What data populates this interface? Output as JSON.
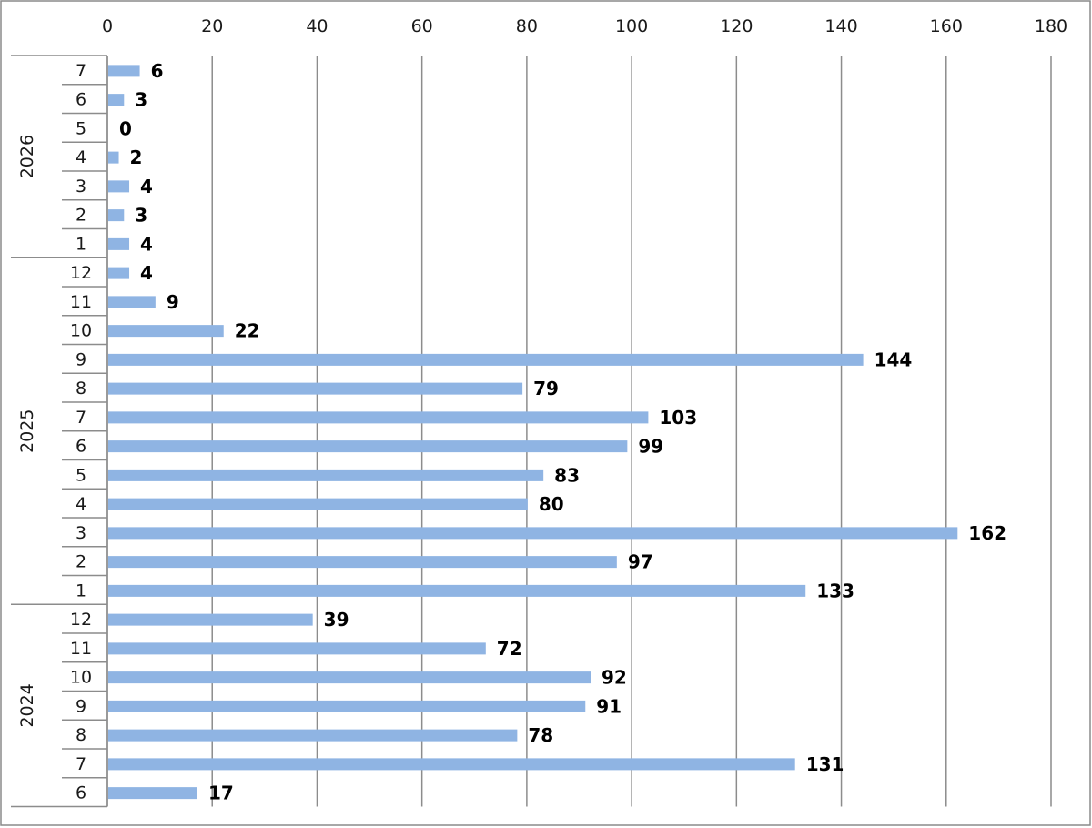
{
  "colors": {
    "bar": "#8fb4e3",
    "grid": "#8c8c8c",
    "frame": "#8a8a8a"
  },
  "chart_data": {
    "type": "bar",
    "orientation": "horizontal",
    "title": "",
    "xlabel": "",
    "ylabel": "",
    "xlim": [
      0,
      180
    ],
    "x_ticks": [
      0,
      20,
      40,
      60,
      80,
      100,
      120,
      140,
      160,
      180
    ],
    "x_axis_position": "top",
    "grid": true,
    "legend": "none",
    "data_labels": true,
    "groups": [
      {
        "year": "2026",
        "months": [
          "7",
          "6",
          "5",
          "4",
          "3",
          "2",
          "1"
        ],
        "values": [
          6,
          3,
          0,
          2,
          4,
          3,
          4
        ]
      },
      {
        "year": "2025",
        "months": [
          "12",
          "11",
          "10",
          "9",
          "8",
          "7",
          "6",
          "5",
          "4",
          "3",
          "2",
          "1"
        ],
        "values": [
          4,
          9,
          22,
          144,
          79,
          103,
          99,
          83,
          80,
          162,
          97,
          133
        ]
      },
      {
        "year": "2024",
        "months": [
          "12",
          "11",
          "10",
          "9",
          "8",
          "7",
          "6"
        ],
        "values": [
          39,
          72,
          92,
          91,
          78,
          131,
          17
        ]
      }
    ]
  }
}
